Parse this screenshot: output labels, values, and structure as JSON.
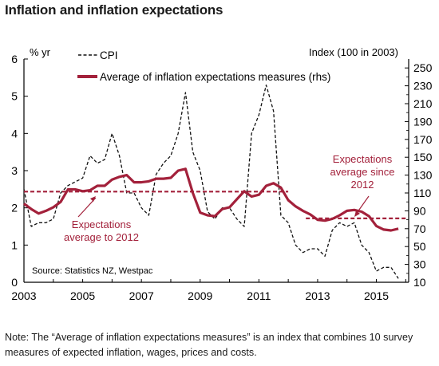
{
  "title": "Inflation and inflation expectations",
  "note": "Note: The “Average of inflation expectations measures” is an index that combines 10 survey measures of expected inflation, wages, prices and costs.",
  "colors": {
    "expectations": "#a3213b",
    "cpi": "#111111",
    "axis": "#000000"
  },
  "chart_data": {
    "type": "line",
    "title": "Inflation and inflation expectations",
    "left_axis_label": "% yr",
    "right_axis_label": "Index (100 in 2003)",
    "source": "Source: Statistics NZ, Westpac",
    "xlim": [
      2003,
      2016.1
    ],
    "x_ticks": [
      2003,
      2005,
      2007,
      2009,
      2011,
      2013,
      2015
    ],
    "ylim_left": [
      0,
      6
    ],
    "y_ticks_left": [
      0,
      1,
      2,
      3,
      4,
      5,
      6
    ],
    "ylim_right": [
      10,
      260
    ],
    "y_ticks_right": [
      10,
      30,
      50,
      70,
      90,
      110,
      130,
      150,
      170,
      190,
      210,
      230,
      250
    ],
    "grid": false,
    "legend_position": "top",
    "series": [
      {
        "name": "CPI",
        "axis": "left",
        "style": "dashed",
        "color": "#111111",
        "x": [
          2003.0,
          2003.25,
          2003.5,
          2003.75,
          2004.0,
          2004.25,
          2004.5,
          2004.75,
          2005.0,
          2005.25,
          2005.5,
          2005.75,
          2006.0,
          2006.25,
          2006.5,
          2006.75,
          2007.0,
          2007.25,
          2007.5,
          2007.75,
          2008.0,
          2008.25,
          2008.5,
          2008.75,
          2009.0,
          2009.25,
          2009.5,
          2009.75,
          2010.0,
          2010.25,
          2010.5,
          2010.75,
          2011.0,
          2011.25,
          2011.5,
          2011.75,
          2012.0,
          2012.25,
          2012.5,
          2012.75,
          2013.0,
          2013.25,
          2013.5,
          2013.75,
          2014.0,
          2014.25,
          2014.5,
          2014.75,
          2015.0,
          2015.25,
          2015.5,
          2015.75
        ],
        "values": [
          2.5,
          1.5,
          1.6,
          1.6,
          1.7,
          2.4,
          2.6,
          2.7,
          2.8,
          3.4,
          3.2,
          3.3,
          4.0,
          3.4,
          2.4,
          2.4,
          2.0,
          1.8,
          2.9,
          3.2,
          3.4,
          4.0,
          5.1,
          3.5,
          3.0,
          1.9,
          1.7,
          2.0,
          2.0,
          1.7,
          1.5,
          4.0,
          4.5,
          5.3,
          4.6,
          1.8,
          1.6,
          1.0,
          0.8,
          0.9,
          0.9,
          0.7,
          1.4,
          1.6,
          1.5,
          1.6,
          1.0,
          0.8,
          0.3,
          0.4,
          0.4,
          0.1
        ]
      },
      {
        "name": "Average of inflation expectations measures (rhs)",
        "axis": "right",
        "style": "solid",
        "color": "#a3213b",
        "x": [
          2003.0,
          2003.25,
          2003.5,
          2003.75,
          2004.0,
          2004.25,
          2004.5,
          2004.75,
          2005.0,
          2005.25,
          2005.5,
          2005.75,
          2006.0,
          2006.25,
          2006.5,
          2006.75,
          2007.0,
          2007.25,
          2007.5,
          2007.75,
          2008.0,
          2008.25,
          2008.5,
          2008.75,
          2009.0,
          2009.25,
          2009.5,
          2009.75,
          2010.0,
          2010.25,
          2010.5,
          2010.75,
          2011.0,
          2011.25,
          2011.5,
          2011.75,
          2012.0,
          2012.25,
          2012.5,
          2012.75,
          2013.0,
          2013.25,
          2013.5,
          2013.75,
          2014.0,
          2014.25,
          2014.5,
          2014.75,
          2015.0,
          2015.25,
          2015.5,
          2015.75
        ],
        "values": [
          98,
          92,
          87,
          90,
          94,
          100,
          114,
          114,
          112,
          113,
          118,
          118,
          125,
          128,
          130,
          122,
          122,
          123,
          126,
          126,
          127,
          135,
          137,
          110,
          88,
          85,
          84,
          92,
          94,
          103,
          112,
          106,
          108,
          118,
          121,
          116,
          102,
          95,
          90,
          86,
          80,
          79,
          81,
          85,
          90,
          91,
          89,
          84,
          73,
          69,
          68,
          70
        ]
      },
      {
        "name": "Expectations average to 2012",
        "axis": "right",
        "style": "dashed",
        "color": "#a3213b",
        "x": [
          2003.0,
          2012.0
        ],
        "values": [
          111.5,
          111.5
        ]
      },
      {
        "name": "Expectations average since 2012",
        "axis": "right",
        "style": "dashed",
        "color": "#a3213b",
        "x": [
          2012.6,
          2016.0
        ],
        "values": [
          81.5,
          81.5
        ]
      }
    ],
    "annotations": [
      {
        "text": "Expectations average to 2012",
        "lines": [
          "Expectations",
          "average to 2012"
        ],
        "color": "#a3213b"
      },
      {
        "text": "Expectations average since 2012",
        "lines": [
          "Expectations",
          "average since",
          "2012"
        ],
        "color": "#a3213b"
      }
    ]
  }
}
